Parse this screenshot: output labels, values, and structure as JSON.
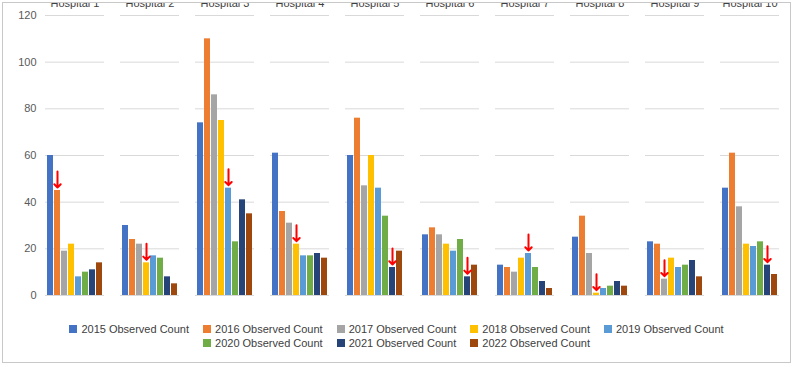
{
  "chart_data": {
    "type": "bar",
    "categories": [
      "Hospital 1",
      "Hospital 2",
      "Hospital 3",
      "Hospital 4",
      "Hospital 5",
      "Hospital 6",
      "Hospital 7",
      "Hospital 8",
      "Hospital 9",
      "Hospital 10"
    ],
    "series": [
      {
        "name": "2015 Observed Count",
        "color": "#4472C4",
        "values": [
          60,
          30,
          74,
          61,
          60,
          26,
          13,
          25,
          23,
          46
        ]
      },
      {
        "name": "2016 Observed Count",
        "color": "#ED7D31",
        "values": [
          45,
          24,
          110,
          36,
          76,
          29,
          12,
          34,
          22,
          61
        ]
      },
      {
        "name": "2017 Observed Count",
        "color": "#A5A5A5",
        "values": [
          19,
          22,
          86,
          31,
          47,
          26,
          10,
          18,
          7,
          38
        ]
      },
      {
        "name": "2018 Observed Count",
        "color": "#FFC000",
        "values": [
          22,
          14,
          75,
          22,
          60,
          22,
          16,
          1,
          16,
          22
        ]
      },
      {
        "name": "2019 Observed Count",
        "color": "#5B9BD5",
        "values": [
          8,
          17,
          46,
          17,
          46,
          19,
          18,
          3,
          12,
          21
        ]
      },
      {
        "name": "2020 Observed Count",
        "color": "#70AD47",
        "values": [
          10,
          16,
          23,
          17,
          34,
          24,
          12,
          4,
          13,
          23
        ]
      },
      {
        "name": "2021 Observed Count",
        "color": "#264478",
        "values": [
          11,
          8,
          41,
          18,
          12,
          8,
          6,
          6,
          15,
          13
        ]
      },
      {
        "name": "2022 Observed Count",
        "color": "#9E480E",
        "values": [
          14,
          5,
          35,
          16,
          19,
          13,
          3,
          4,
          8,
          9
        ]
      }
    ],
    "arrows": [
      {
        "category": "Hospital 1",
        "series": "2016 Observed Count"
      },
      {
        "category": "Hospital 2",
        "series": "2018 Observed Count"
      },
      {
        "category": "Hospital 3",
        "series": "2019 Observed Count"
      },
      {
        "category": "Hospital 4",
        "series": "2018 Observed Count"
      },
      {
        "category": "Hospital 5",
        "series": "2021 Observed Count"
      },
      {
        "category": "Hospital 6",
        "series": "2021 Observed Count"
      },
      {
        "category": "Hospital 7",
        "series": "2019 Observed Count"
      },
      {
        "category": "Hospital 8",
        "series": "2018 Observed Count"
      },
      {
        "category": "Hospital 9",
        "series": "2017 Observed Count"
      },
      {
        "category": "Hospital 10",
        "series": "2021 Observed Count"
      }
    ],
    "ylim": [
      0,
      120
    ],
    "yticks": [
      0,
      20,
      40,
      60,
      80,
      100,
      120
    ],
    "grid": true,
    "legend": "bottom"
  }
}
